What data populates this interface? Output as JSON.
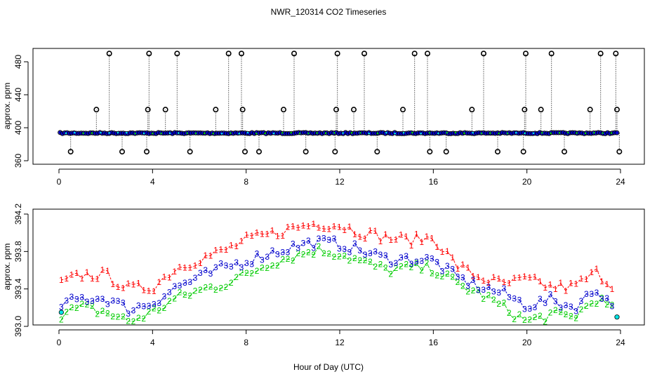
{
  "figure": {
    "title": "NWR_120314  CO2 Timeseries",
    "xlabel": "Hour of Day (UTC)"
  },
  "colors": {
    "series1": "#ff0000",
    "series2": "#00cc00",
    "series3": "#0000cc",
    "cyan": "#00e5e5",
    "outlier": "#000000",
    "axis": "#000000"
  },
  "chart_data": [
    {
      "type": "scatter",
      "title": "",
      "xlabel": "",
      "ylabel": "approx. ppm",
      "xlim": [
        -0.5,
        24.3
      ],
      "ylim": [
        357,
        495
      ],
      "xticks": [
        0,
        4,
        8,
        12,
        16,
        20,
        24
      ],
      "yticks": [
        360,
        400,
        440,
        480
      ],
      "tick_labels_x": [
        "0",
        "4",
        "8",
        "12",
        "16",
        "20",
        "24"
      ],
      "tick_labels_y": [
        "360",
        "400",
        "440",
        "480"
      ],
      "baseline_ppm": 393.5,
      "series": [
        {
          "name": "high outliers",
          "color": "#000000",
          "x": [
            2.15,
            3.85,
            5.05,
            7.25,
            7.8,
            10.05,
            11.9,
            13.05,
            15.2,
            15.75,
            18.15,
            19.95,
            21.05,
            23.15,
            23.8
          ],
          "y": [
            490,
            490,
            490,
            490,
            490,
            490,
            490,
            490,
            490,
            490,
            490,
            490,
            490,
            490,
            490
          ]
        },
        {
          "name": "mid outliers",
          "color": "#000000",
          "x": [
            1.6,
            3.8,
            4.55,
            6.7,
            7.85,
            9.6,
            11.85,
            12.6,
            14.7,
            17.65,
            19.9,
            20.6,
            22.7,
            23.85
          ],
          "y": [
            422,
            422,
            422,
            422,
            422,
            422,
            422,
            422,
            422,
            422,
            422,
            422,
            422,
            422
          ]
        },
        {
          "name": "low outliers",
          "color": "#000000",
          "x": [
            0.5,
            2.7,
            3.75,
            5.6,
            7.95,
            8.55,
            10.55,
            11.8,
            13.6,
            15.85,
            16.55,
            18.75,
            19.85,
            21.6,
            23.95
          ],
          "y": [
            371,
            371,
            371,
            371,
            371,
            371,
            371,
            371,
            371,
            371,
            371,
            371,
            371,
            371,
            371
          ]
        }
      ]
    },
    {
      "type": "scatter",
      "title": "",
      "xlabel": "Hour of Day (UTC)",
      "ylabel": "approx. ppm",
      "xlim": [
        -0.5,
        24.3
      ],
      "ylim": [
        392.98,
        394.25
      ],
      "xticks": [
        0,
        4,
        8,
        12,
        16,
        20,
        24
      ],
      "yticks": [
        393.0,
        393.4,
        393.8,
        394.2
      ],
      "tick_labels_x": [
        "0",
        "4",
        "8",
        "12",
        "16",
        "20",
        "24"
      ],
      "tick_labels_y": [
        "393.0",
        "393.4",
        "393.8",
        "394.2"
      ],
      "trend": {
        "x": [
          0,
          1,
          2,
          3,
          4,
          5,
          6,
          7,
          8,
          9,
          10,
          11,
          12,
          13,
          14,
          15,
          16,
          17,
          18,
          19,
          20,
          21,
          22,
          23,
          24
        ],
        "level1": [
          393.45,
          393.55,
          393.55,
          393.4,
          393.42,
          393.62,
          393.72,
          393.8,
          393.92,
          393.98,
          394.05,
          394.1,
          394.08,
          394.0,
          393.95,
          393.92,
          393.95,
          393.65,
          393.52,
          393.45,
          393.5,
          393.42,
          393.42,
          393.58,
          393.35
        ],
        "level2": [
          393.12,
          393.2,
          393.15,
          393.05,
          393.15,
          393.3,
          393.38,
          393.45,
          393.55,
          393.68,
          393.75,
          393.82,
          393.78,
          393.68,
          393.6,
          393.62,
          393.62,
          393.45,
          393.35,
          393.2,
          393.05,
          393.12,
          393.1,
          393.3,
          393.1
        ],
        "level3": [
          393.22,
          393.3,
          393.3,
          393.18,
          393.25,
          393.42,
          393.52,
          393.62,
          393.7,
          393.78,
          393.85,
          393.9,
          393.88,
          393.8,
          393.72,
          393.72,
          393.7,
          393.52,
          393.42,
          393.35,
          393.22,
          393.28,
          393.2,
          393.4,
          393.12
        ]
      },
      "series": [
        {
          "name": "1",
          "color": "#ff0000"
        },
        {
          "name": "2",
          "color": "#00cc00"
        },
        {
          "name": "3",
          "color": "#0000cc"
        }
      ]
    }
  ]
}
